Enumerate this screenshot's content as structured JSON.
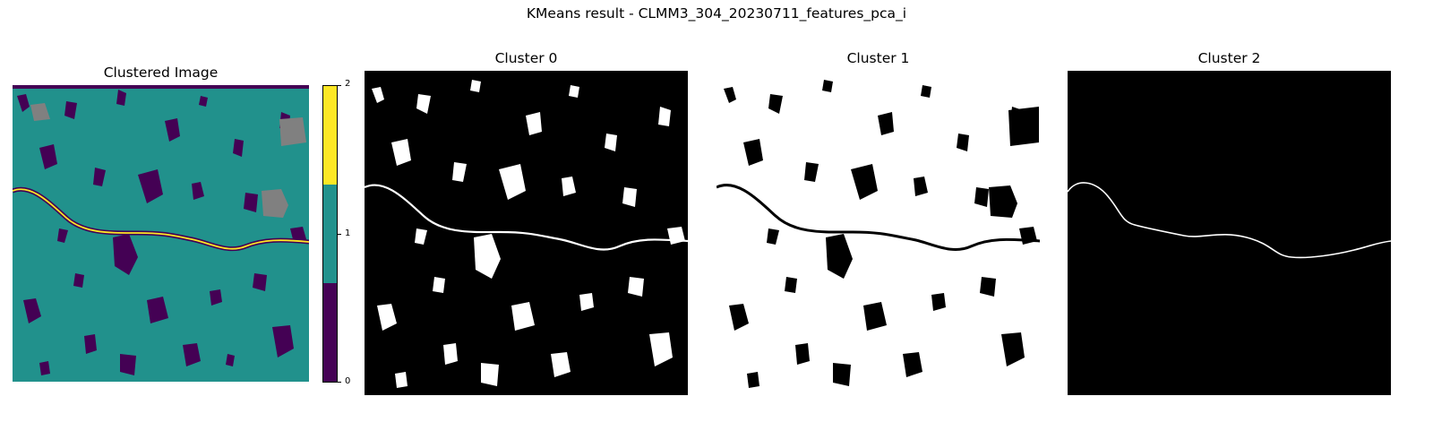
{
  "figure": {
    "suptitle": "KMeans result - CLMM3_304_20230711_features_pca_i"
  },
  "panels": {
    "clustered": {
      "title": "Clustered Image"
    },
    "cluster0": {
      "title": "Cluster 0"
    },
    "cluster1": {
      "title": "Cluster 1"
    },
    "cluster2": {
      "title": "Cluster 2"
    }
  },
  "colorbar": {
    "ticks": [
      "0",
      "1",
      "2"
    ],
    "colors": {
      "class0": "#440154",
      "class1": "#21918c",
      "class2": "#fde725"
    }
  },
  "colors": {
    "nodata": "#808080",
    "mask_on": "#ffffff",
    "mask_off": "#000000"
  }
}
